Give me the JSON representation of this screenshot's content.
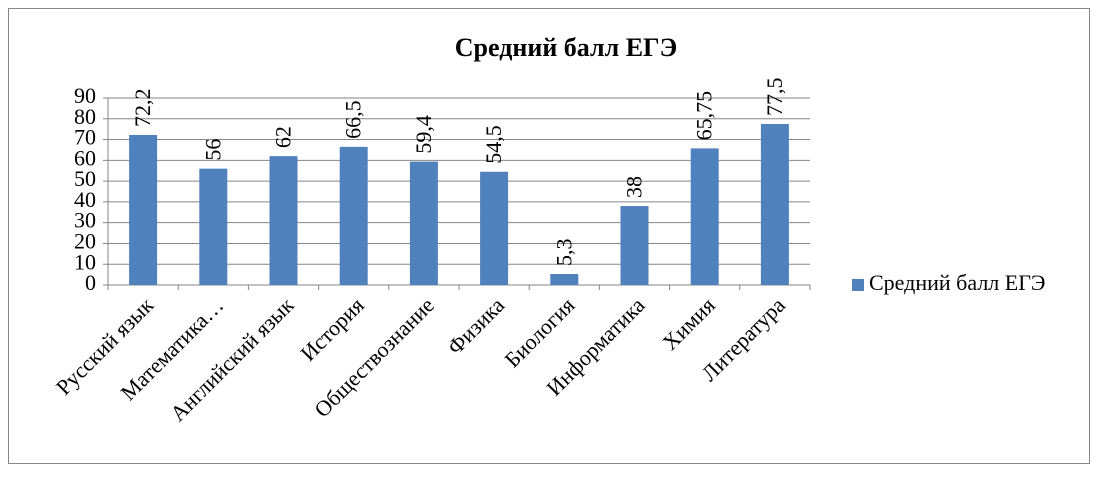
{
  "chart_data": {
    "type": "bar",
    "title": "Средний балл ЕГЭ",
    "categories": [
      "Русский язык",
      "Математика…",
      "Английский язык",
      "История",
      "Обществознание",
      "Физика",
      "Биология",
      "Информатика",
      "Химия",
      "Литература"
    ],
    "series": [
      {
        "name": "Средний балл ЕГЭ",
        "color": "#4f81bd",
        "values": [
          72.2,
          56,
          62,
          66.5,
          59.4,
          54.5,
          5.3,
          38,
          65.75,
          77.5
        ],
        "value_labels": [
          "72,2",
          "56",
          "62",
          "66,5",
          "59,4",
          "54,5",
          "5,3",
          "38",
          "65,75",
          "77,5"
        ]
      }
    ],
    "ylim": [
      0,
      90
    ],
    "yticks": [
      0,
      10,
      20,
      30,
      40,
      50,
      60,
      70,
      80,
      90
    ],
    "grid": true,
    "legend": "right"
  }
}
